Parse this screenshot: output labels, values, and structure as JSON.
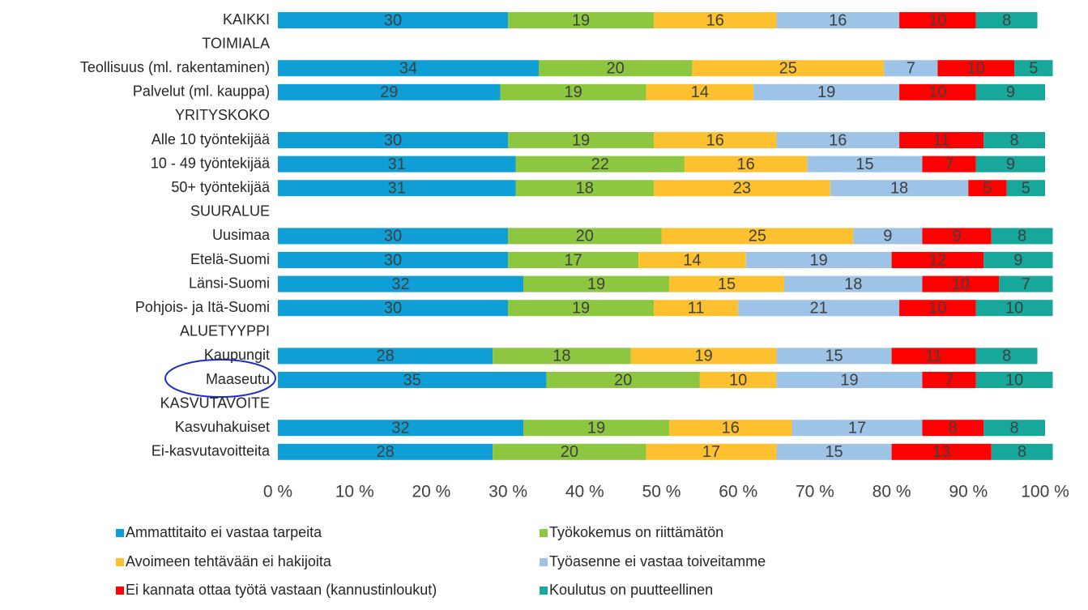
{
  "chart_data": {
    "type": "stacked-bar-horizontal",
    "categories": [
      "KAIKKI",
      "TOIMIALA",
      "Teollisuus (ml. rakentaminen)",
      "Palvelut (ml. kauppa)",
      "YRITYSKOKO",
      "Alle 10 työntekijää",
      "10 - 49 työntekijää",
      "50+ työntekijää",
      "SUURALUE",
      "Uusimaa",
      "Etelä-Suomi",
      "Länsi-Suomi",
      "Pohjois- ja Itä-Suomi",
      "ALUETYYPPI",
      "Kaupungit",
      "Maaseutu",
      "KASVUTAVOITE",
      "Kasvuhakuiset",
      "Ei-kasvutavoitteita"
    ],
    "series": [
      {
        "name": "Ammattitaito ei vastaa tarpeita",
        "color": "#0f9ed5",
        "values": [
          30,
          null,
          34,
          29,
          null,
          30,
          31,
          31,
          null,
          30,
          30,
          32,
          30,
          null,
          28,
          35,
          null,
          32,
          28
        ]
      },
      {
        "name": "Työkokemus on riittämätön",
        "color": "#8dc63f",
        "values": [
          19,
          null,
          20,
          19,
          null,
          19,
          22,
          18,
          null,
          20,
          17,
          19,
          19,
          null,
          18,
          20,
          null,
          19,
          20
        ]
      },
      {
        "name": "Avoimeen tehtävään ei hakijoita",
        "color": "#fdc12f",
        "values": [
          16,
          null,
          25,
          14,
          null,
          16,
          16,
          23,
          null,
          25,
          14,
          15,
          11,
          null,
          19,
          10,
          null,
          16,
          17
        ]
      },
      {
        "name": "Työasenne ei vastaa toiveitamme",
        "color": "#9dc3e6",
        "values": [
          16,
          null,
          7,
          19,
          null,
          16,
          15,
          18,
          null,
          9,
          19,
          18,
          21,
          null,
          15,
          19,
          null,
          17,
          15
        ]
      },
      {
        "name": "Ei kannata ottaa työtä vastaan (kannustinloukut)",
        "color": "#ff0000",
        "values": [
          10,
          null,
          10,
          10,
          null,
          11,
          7,
          5,
          null,
          9,
          12,
          10,
          10,
          null,
          11,
          7,
          null,
          8,
          13
        ]
      },
      {
        "name": "Koulutus on puutteellinen",
        "color": "#17a79b",
        "values": [
          8,
          null,
          5,
          9,
          null,
          8,
          9,
          5,
          null,
          8,
          9,
          7,
          10,
          null,
          8,
          10,
          null,
          8,
          8
        ]
      }
    ],
    "xlim": [
      0,
      100
    ],
    "xticks": [
      {
        "value": 0,
        "label": "0 %"
      },
      {
        "value": 10,
        "label": "10 %"
      },
      {
        "value": 20,
        "label": "20 %"
      },
      {
        "value": 30,
        "label": "30 %"
      },
      {
        "value": 40,
        "label": "40 %"
      },
      {
        "value": 50,
        "label": "50 %"
      },
      {
        "value": 60,
        "label": "60 %"
      },
      {
        "value": 70,
        "label": "70 %"
      },
      {
        "value": 80,
        "label": "80 %"
      },
      {
        "value": 90,
        "label": "90 %"
      },
      {
        "value": 100,
        "label": "100 %"
      }
    ],
    "grid": false,
    "legend": "bottom"
  }
}
